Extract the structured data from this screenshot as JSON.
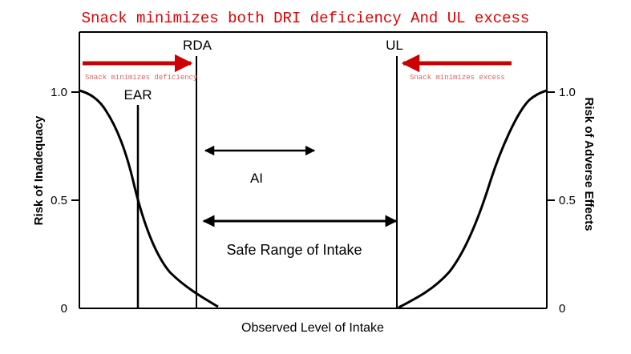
{
  "title": "Snack minimizes both DRI deficiency And UL excess",
  "markers": {
    "rda": "RDA",
    "ul": "UL",
    "ear": "EAR"
  },
  "annotations": {
    "left_arrow_text": "Snack minimizes deficiency",
    "right_arrow_text": "Snack minimizes excess"
  },
  "ranges": {
    "ai": "AI",
    "safe": "Safe Range of Intake"
  },
  "axes": {
    "left_label": "Risk of Inadequacy",
    "right_label": "Risk of Adverse Effects",
    "x_label": "Observed Level of Intake",
    "left_ticks": [
      "1.0",
      "0.5",
      "0"
    ],
    "right_ticks": [
      "1.0",
      "0.5",
      "0"
    ]
  },
  "colors": {
    "title": "#e00000",
    "arrow": "#cc0000",
    "annotation_text": "#e06060",
    "line": "#000000"
  }
}
